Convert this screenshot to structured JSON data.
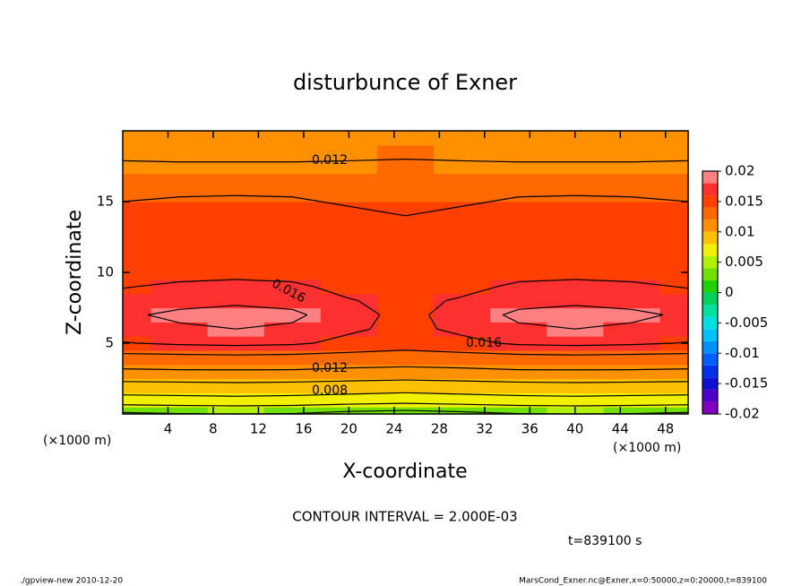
{
  "chart_data": {
    "type": "contour",
    "title": "disturbunce of Exner",
    "x_label": "X-coordinate",
    "y_label": "Z-coordinate",
    "x_unit_left": "(×1000 m)",
    "x_unit_right": "(×1000 m)",
    "contour_interval_note": "CONTOUR INTERVAL = 2.000E-03",
    "time_note": "t=839100 s",
    "footer_left": "./gpview-new  2010-12-20",
    "footer_right": "MarsCond_Exner.nc@Exner,x=0:50000,z=0:20000,t=839100",
    "xlim": [
      0,
      50
    ],
    "ylim": [
      0,
      20
    ],
    "xticks": [
      4,
      8,
      12,
      16,
      20,
      24,
      28,
      32,
      36,
      40,
      44,
      48
    ],
    "yticks": [
      5,
      10,
      15
    ],
    "x": [
      0,
      5,
      10,
      15,
      20,
      25,
      30,
      35,
      40,
      45,
      50
    ],
    "z": [
      0,
      1,
      2,
      3,
      4,
      5,
      6,
      7,
      8,
      9,
      10,
      12,
      14,
      16,
      18,
      20
    ],
    "values": [
      [
        0.0036,
        0.0039,
        0.004,
        0.0039,
        0.0033,
        0.003,
        0.0034,
        0.0039,
        0.004,
        0.0039,
        0.0036
      ],
      [
        0.0073,
        0.0074,
        0.0075,
        0.0074,
        0.0072,
        0.007,
        0.0072,
        0.0074,
        0.0075,
        0.0074,
        0.0073
      ],
      [
        0.0093,
        0.0094,
        0.0095,
        0.0094,
        0.0092,
        0.009,
        0.0092,
        0.0094,
        0.0095,
        0.0094,
        0.0093
      ],
      [
        0.0117,
        0.0118,
        0.0118,
        0.0118,
        0.0116,
        0.0115,
        0.0116,
        0.0118,
        0.0118,
        0.0118,
        0.0117
      ],
      [
        0.0133,
        0.0134,
        0.0135,
        0.0134,
        0.0132,
        0.013,
        0.0132,
        0.0134,
        0.0135,
        0.0134,
        0.0133
      ],
      [
        0.0159,
        0.0163,
        0.0165,
        0.0163,
        0.0155,
        0.015,
        0.0155,
        0.0163,
        0.0165,
        0.0163,
        0.0159
      ],
      [
        0.017,
        0.0176,
        0.018,
        0.0176,
        0.0163,
        0.0155,
        0.0164,
        0.0176,
        0.018,
        0.0176,
        0.017
      ],
      [
        0.0176,
        0.0185,
        0.019,
        0.0185,
        0.0166,
        0.0155,
        0.0167,
        0.0185,
        0.019,
        0.0185,
        0.0176
      ],
      [
        0.0167,
        0.0172,
        0.0175,
        0.0172,
        0.0161,
        0.0155,
        0.0162,
        0.0172,
        0.0175,
        0.0172,
        0.0167
      ],
      [
        0.0159,
        0.0163,
        0.0165,
        0.0163,
        0.0155,
        0.015,
        0.0155,
        0.0163,
        0.0165,
        0.0163,
        0.0159
      ],
      [
        0.0152,
        0.0154,
        0.0155,
        0.0154,
        0.015,
        0.0148,
        0.015,
        0.0154,
        0.0155,
        0.0154,
        0.0152
      ],
      [
        0.0149,
        0.0151,
        0.0152,
        0.0151,
        0.0147,
        0.0145,
        0.0147,
        0.0151,
        0.0152,
        0.0151,
        0.0149
      ],
      [
        0.0143,
        0.0144,
        0.0145,
        0.0144,
        0.0142,
        0.014,
        0.0142,
        0.0144,
        0.0145,
        0.0144,
        0.0143
      ],
      [
        0.0137,
        0.0138,
        0.0138,
        0.0138,
        0.0136,
        0.0135,
        0.0136,
        0.0138,
        0.0138,
        0.0138,
        0.0137
      ],
      [
        0.0119,
        0.0118,
        0.0118,
        0.0118,
        0.0119,
        0.012,
        0.0119,
        0.0118,
        0.0118,
        0.0118,
        0.0119
      ],
      [
        0.0112,
        0.0112,
        0.0112,
        0.0112,
        0.0112,
        0.0112,
        0.0112,
        0.0112,
        0.0112,
        0.0112,
        0.0112
      ]
    ],
    "levels": [
      -0.02,
      -0.018,
      -0.016,
      -0.014,
      -0.012,
      -0.01,
      -0.008,
      -0.006,
      -0.004,
      -0.002,
      0,
      0.002,
      0.004,
      0.006,
      0.008,
      0.01,
      0.012,
      0.014,
      0.016,
      0.018,
      0.02
    ],
    "level_colors": [
      "#8000c0",
      "#5000c8",
      "#1010d0",
      "#0030e8",
      "#0060ff",
      "#0090ff",
      "#00c0ff",
      "#00e0e0",
      "#00e0a0",
      "#00d060",
      "#20d000",
      "#70e000",
      "#b0f000",
      "#f0f000",
      "#ffc000",
      "#ff9000",
      "#ff6a00",
      "#ff4000",
      "#ff3030",
      "#ff8080"
    ],
    "colorbar_ticks": [
      0.02,
      0.015,
      0.01,
      0.005,
      0,
      -0.005,
      -0.01,
      -0.015,
      -0.02
    ],
    "contour_labels": [
      "0.012",
      "0.016",
      "0.016",
      "0.012",
      "0.008"
    ]
  }
}
